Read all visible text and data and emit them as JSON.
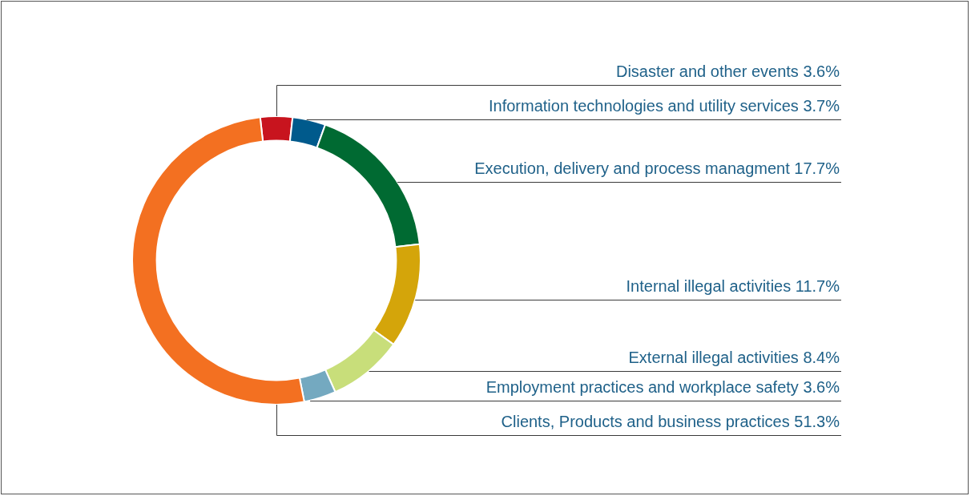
{
  "chart_data": {
    "type": "donut",
    "categories": [
      "Disaster and other events",
      "Information technologies and utility services",
      "Execution, delivery and process managment",
      "Internal illegal activities",
      "External illegal activities",
      "Employment practices and workplace safety",
      "Clients, Products and business practices"
    ],
    "values": [
      3.6,
      3.7,
      17.7,
      11.7,
      8.4,
      3.6,
      51.3
    ],
    "value_labels": [
      "3.6%",
      "3.7%",
      "17.7%",
      "11.7%",
      "8.4%",
      "3.6%",
      "51.3%"
    ],
    "colors": [
      "#c8141e",
      "#005a8c",
      "#006a32",
      "#d4a50a",
      "#c8de7a",
      "#74a9c0",
      "#f37021"
    ],
    "legend": false
  }
}
